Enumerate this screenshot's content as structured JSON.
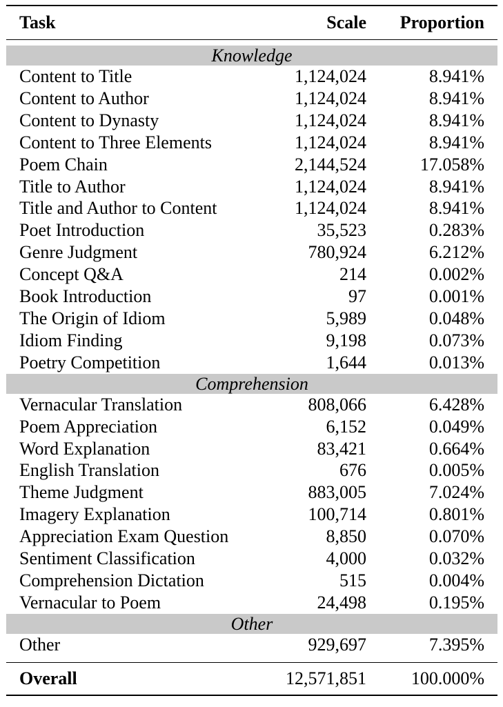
{
  "header": {
    "task": "Task",
    "scale": "Scale",
    "proportion": "Proportion"
  },
  "sections": [
    {
      "name": "Knowledge",
      "rows": [
        {
          "task": "Content to Title",
          "scale": "1,124,024",
          "proportion": "8.941%"
        },
        {
          "task": "Content to Author",
          "scale": "1,124,024",
          "proportion": "8.941%"
        },
        {
          "task": "Content to Dynasty",
          "scale": "1,124,024",
          "proportion": "8.941%"
        },
        {
          "task": "Content to Three Elements",
          "scale": "1,124,024",
          "proportion": "8.941%"
        },
        {
          "task": "Poem Chain",
          "scale": "2,144,524",
          "proportion": "17.058%"
        },
        {
          "task": "Title to Author",
          "scale": "1,124,024",
          "proportion": "8.941%"
        },
        {
          "task": "Title and Author to Content",
          "scale": "1,124,024",
          "proportion": "8.941%"
        },
        {
          "task": "Poet Introduction",
          "scale": "35,523",
          "proportion": "0.283%"
        },
        {
          "task": "Genre Judgment",
          "scale": "780,924",
          "proportion": "6.212%"
        },
        {
          "task": "Concept Q&A",
          "scale": "214",
          "proportion": "0.002%"
        },
        {
          "task": "Book Introduction",
          "scale": "97",
          "proportion": "0.001%"
        },
        {
          "task": "The Origin of Idiom",
          "scale": "5,989",
          "proportion": "0.048%"
        },
        {
          "task": "Idiom Finding",
          "scale": "9,198",
          "proportion": "0.073%"
        },
        {
          "task": "Poetry Competition",
          "scale": "1,644",
          "proportion": "0.013%"
        }
      ]
    },
    {
      "name": "Comprehension",
      "rows": [
        {
          "task": "Vernacular Translation",
          "scale": "808,066",
          "proportion": "6.428%"
        },
        {
          "task": "Poem Appreciation",
          "scale": "6,152",
          "proportion": "0.049%"
        },
        {
          "task": "Word Explanation",
          "scale": "83,421",
          "proportion": "0.664%"
        },
        {
          "task": "English Translation",
          "scale": "676",
          "proportion": "0.005%"
        },
        {
          "task": "Theme Judgment",
          "scale": "883,005",
          "proportion": "7.024%"
        },
        {
          "task": "Imagery Explanation",
          "scale": "100,714",
          "proportion": "0.801%"
        },
        {
          "task": "Appreciation Exam Question",
          "scale": "8,850",
          "proportion": "0.070%"
        },
        {
          "task": "Sentiment Classification",
          "scale": "4,000",
          "proportion": "0.032%"
        },
        {
          "task": "Comprehension Dictation",
          "scale": "515",
          "proportion": "0.004%"
        },
        {
          "task": "Vernacular to Poem",
          "scale": "24,498",
          "proportion": "0.195%"
        }
      ]
    },
    {
      "name": "Other",
      "rows": [
        {
          "task": "Other",
          "scale": "929,697",
          "proportion": "7.395%"
        }
      ]
    }
  ],
  "overall": {
    "task": "Overall",
    "scale": "12,571,851",
    "proportion": "100.000%"
  }
}
